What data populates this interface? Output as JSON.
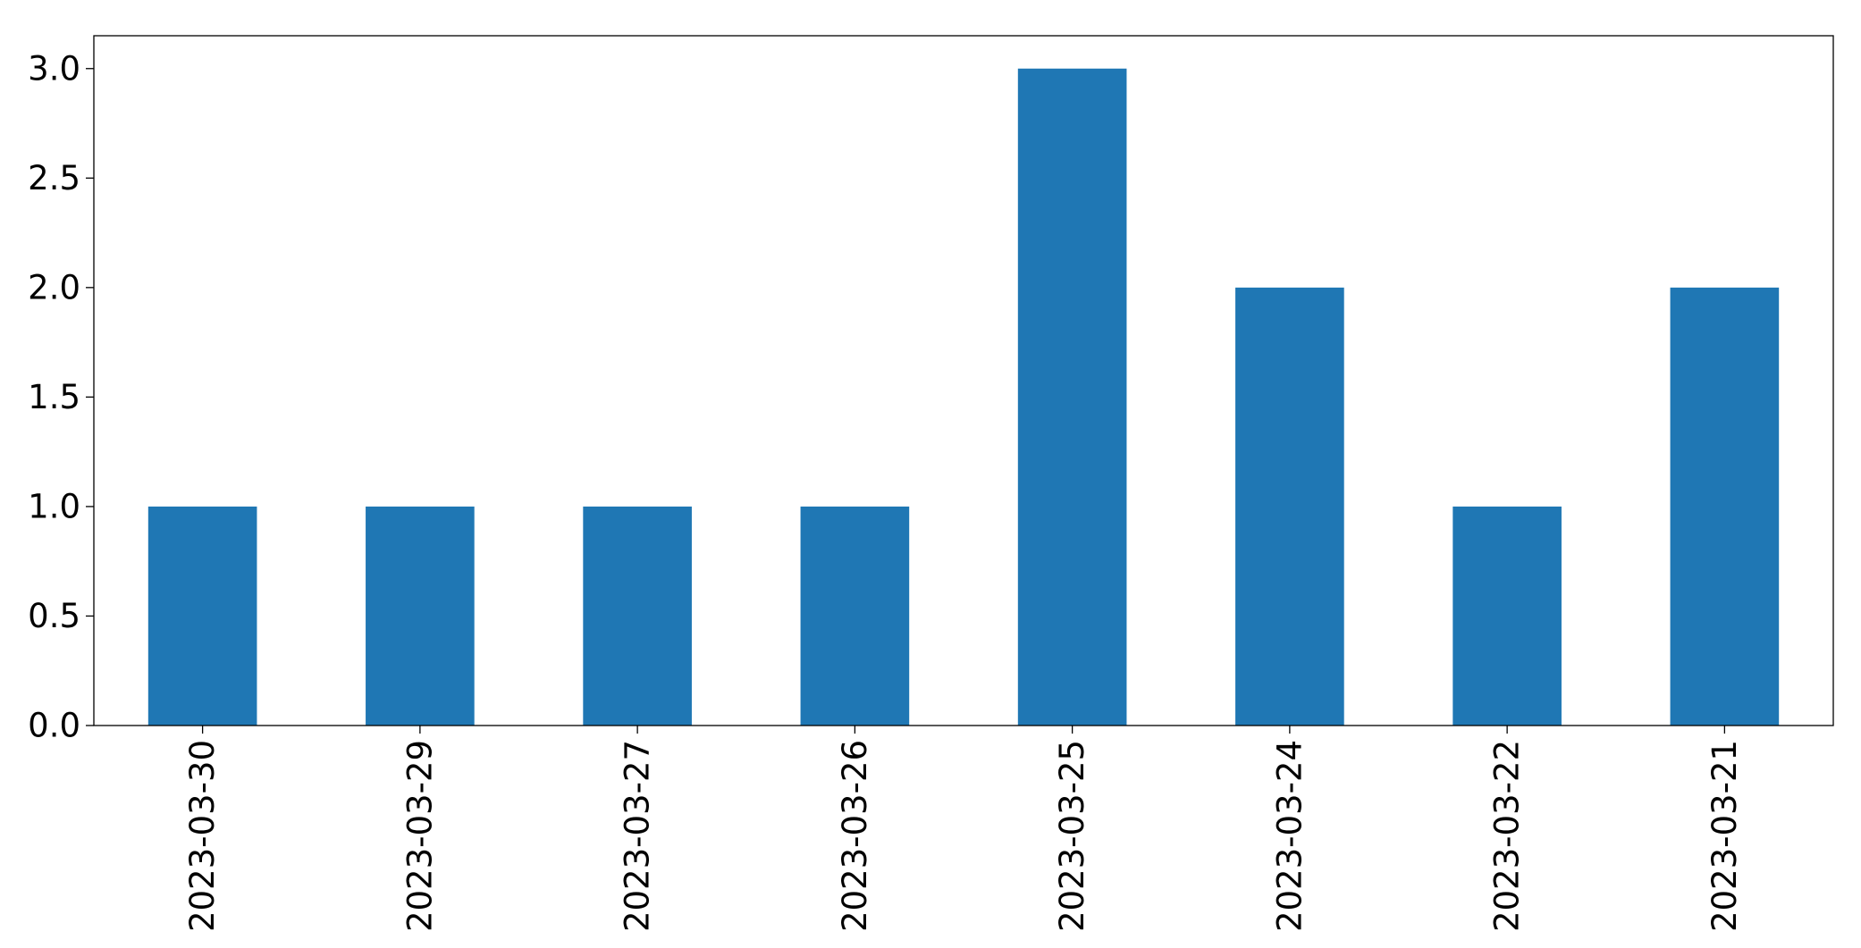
{
  "chart_data": {
    "type": "bar",
    "categories": [
      "2023-03-30",
      "2023-03-29",
      "2023-03-27",
      "2023-03-26",
      "2023-03-25",
      "2023-03-24",
      "2023-03-22",
      "2023-03-21"
    ],
    "values": [
      1,
      1,
      1,
      1,
      3,
      2,
      1,
      2
    ],
    "ylim": [
      0,
      3.15
    ],
    "yticks": [
      0.0,
      0.5,
      1.0,
      1.5,
      2.0,
      2.5,
      3.0
    ],
    "ytick_labels": [
      "0.0",
      "0.5",
      "1.0",
      "1.5",
      "2.0",
      "2.5",
      "3.0"
    ],
    "title": "",
    "xlabel": "",
    "ylabel": "",
    "grid": false,
    "legend": false,
    "bar_color": "#1f77b4"
  }
}
